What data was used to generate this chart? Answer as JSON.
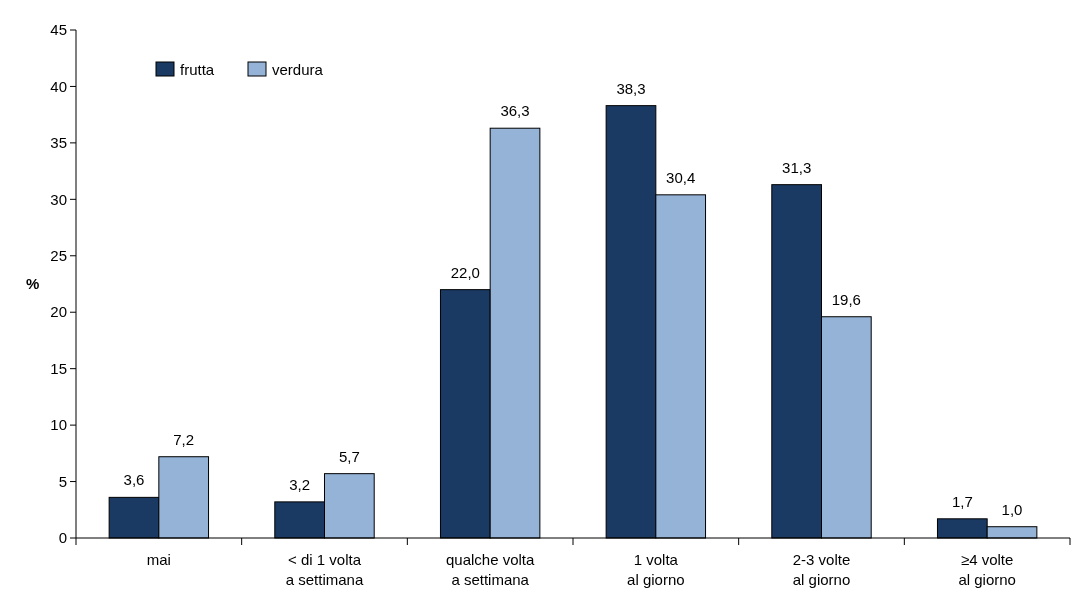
{
  "chart_data": {
    "type": "bar",
    "ylabel": "%",
    "categories": [
      "mai",
      "< di 1 volta\na settimana",
      "qualche volta\na settimana",
      "1 volta\nal giorno",
      "2-3 volte\nal giorno",
      "≥4 volte\nal giorno"
    ],
    "series": [
      {
        "name": "frutta",
        "color": "#1b3a63",
        "values": [
          3.6,
          3.2,
          22.0,
          38.3,
          31.3,
          1.7
        ],
        "value_labels": [
          "3,6",
          "3,2",
          "22,0",
          "38,3",
          "31,3",
          "1,7"
        ]
      },
      {
        "name": "verdura",
        "color": "#95b3d7",
        "values": [
          7.2,
          5.7,
          36.3,
          30.4,
          19.6,
          1.0
        ],
        "value_labels": [
          "7,2",
          "5,7",
          "36,3",
          "30,4",
          "19,6",
          "1,0"
        ]
      }
    ],
    "ylim": [
      0,
      45
    ],
    "yticks": [
      0,
      5,
      10,
      15,
      20,
      25,
      30,
      35,
      40,
      45
    ],
    "grid": false,
    "legend": "top left"
  }
}
